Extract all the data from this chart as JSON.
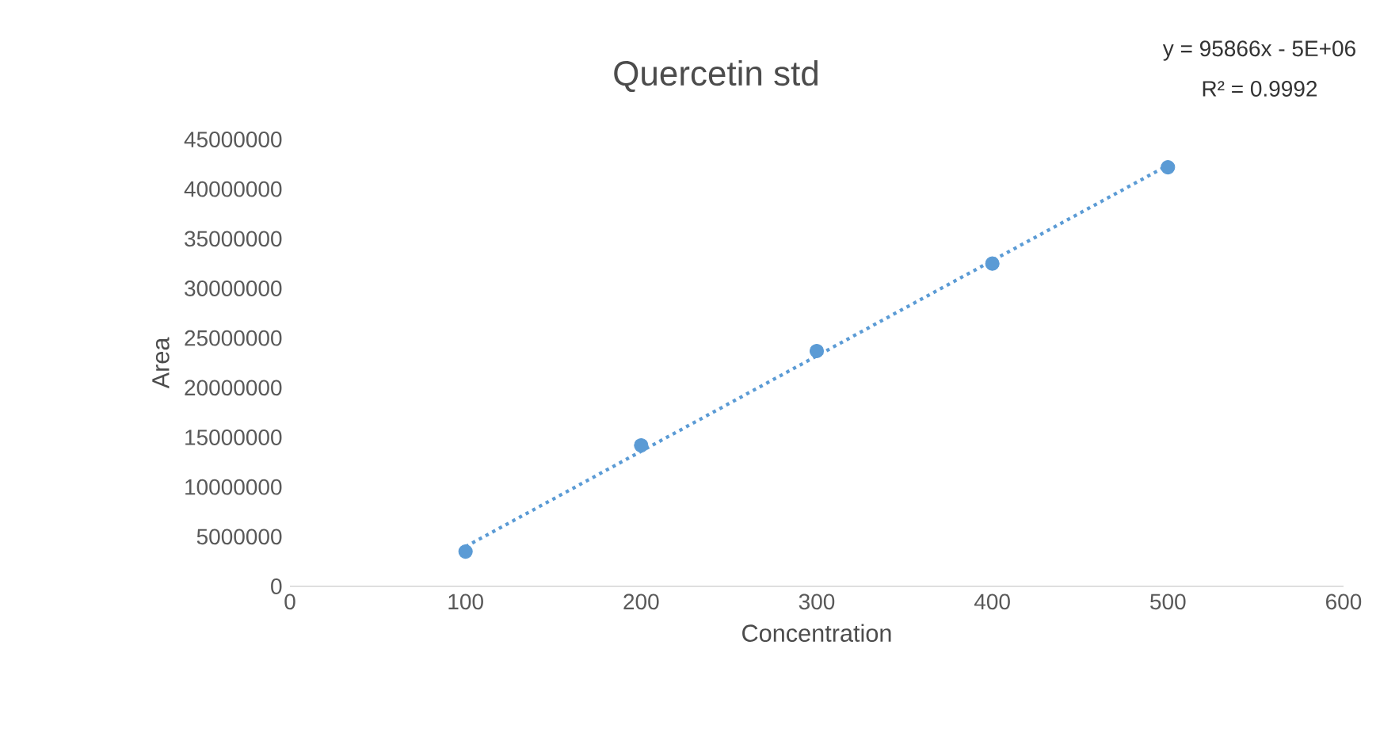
{
  "chart_data": {
    "type": "scatter",
    "title": "Quercetin std",
    "xlabel": "Concentration",
    "ylabel": "Area",
    "annotations": [
      "y = 95866x - 5E+06",
      "R² = 0.9992"
    ],
    "xlim": [
      0,
      600
    ],
    "xticks": [
      0,
      100,
      200,
      300,
      400,
      500,
      600
    ],
    "ylim": [
      0,
      45000000
    ],
    "yticks": [
      0,
      5000000,
      10000000,
      15000000,
      20000000,
      25000000,
      30000000,
      35000000,
      40000000,
      45000000
    ],
    "series": [
      {
        "marker": "circle",
        "color": "#5b9bd5",
        "x": [
          100,
          200,
          300,
          400,
          500
        ],
        "values": [
          3500000,
          14200000,
          23700000,
          32500000,
          42200000
        ]
      },
      {
        "type": "line",
        "color": "#5b9bd5",
        "line_style": "dotted",
        "x": [
          100,
          500
        ],
        "values": [
          4000000,
          42400000
        ]
      }
    ]
  }
}
